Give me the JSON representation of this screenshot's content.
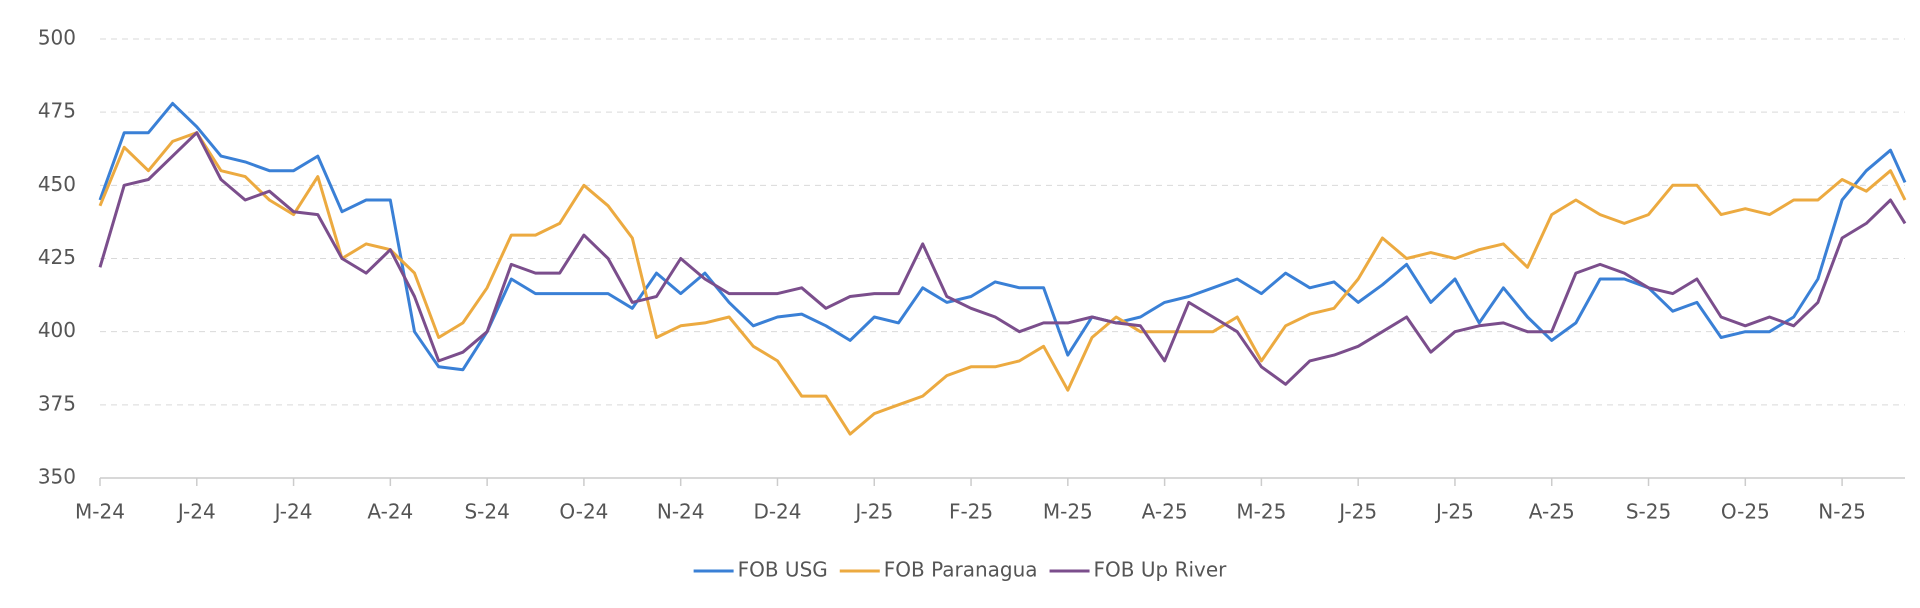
{
  "chart_data": {
    "type": "line",
    "x": [
      0,
      0.25,
      0.5,
      0.75,
      1,
      1.25,
      1.5,
      1.75,
      2,
      2.25,
      2.5,
      2.75,
      3,
      3.25,
      3.5,
      3.75,
      4,
      4.25,
      4.5,
      4.75,
      5,
      5.25,
      5.5,
      5.75,
      6,
      6.25,
      6.5,
      6.75,
      7,
      7.25,
      7.5,
      7.75,
      8,
      8.25,
      8.5,
      8.75,
      9,
      9.25,
      9.5,
      9.75,
      10,
      10.25,
      10.5,
      10.75,
      11,
      11.25,
      11.5,
      11.75,
      12,
      12.25,
      12.5,
      12.75,
      13,
      13.25,
      13.5,
      13.75,
      14,
      14.25,
      14.5,
      14.75,
      15,
      15.25,
      15.5,
      15.75,
      16,
      16.25,
      16.5,
      16.75,
      17,
      17.25,
      17.5,
      17.75,
      18,
      18.25,
      18.5,
      18.65
    ],
    "series": [
      {
        "name": "FOB USG",
        "color": "#3a80d6",
        "values": [
          445,
          468,
          468,
          478,
          470,
          460,
          458,
          455,
          455,
          460,
          441,
          445,
          445,
          400,
          388,
          387,
          400,
          418,
          413,
          413,
          413,
          413,
          408,
          420,
          413,
          420,
          410,
          402,
          405,
          406,
          402,
          397,
          405,
          403,
          415,
          410,
          412,
          417,
          415,
          415,
          392,
          405,
          403,
          405,
          410,
          412,
          415,
          418,
          413,
          420,
          415,
          417,
          410,
          416,
          423,
          410,
          418,
          403,
          415,
          405,
          397,
          403,
          418,
          418,
          415,
          407,
          410,
          398,
          400,
          400,
          405,
          418,
          445,
          455,
          462,
          451
        ]
      },
      {
        "name": "FOB Paranagua",
        "color": "#ecaa40",
        "values": [
          443,
          463,
          455,
          465,
          468,
          455,
          453,
          445,
          440,
          453,
          425,
          430,
          428,
          420,
          398,
          403,
          415,
          433,
          433,
          437,
          450,
          443,
          432,
          398,
          402,
          403,
          405,
          395,
          390,
          378,
          378,
          365,
          372,
          375,
          378,
          385,
          388,
          388,
          390,
          395,
          380,
          398,
          405,
          400,
          400,
          400,
          400,
          405,
          390,
          402,
          406,
          408,
          418,
          432,
          425,
          427,
          425,
          428,
          430,
          422,
          440,
          445,
          440,
          437,
          440,
          450,
          450,
          440,
          442,
          440,
          445,
          445,
          452,
          448,
          455,
          445
        ]
      },
      {
        "name": "FOB Up River",
        "color": "#7b4e8c",
        "values": [
          422,
          450,
          452,
          460,
          468,
          452,
          445,
          448,
          441,
          440,
          425,
          420,
          428,
          412,
          390,
          393,
          400,
          423,
          420,
          420,
          433,
          425,
          410,
          412,
          425,
          418,
          413,
          413,
          413,
          415,
          408,
          412,
          413,
          413,
          430,
          412,
          408,
          405,
          400,
          403,
          403,
          405,
          403,
          402,
          390,
          410,
          405,
          400,
          388,
          382,
          390,
          392,
          395,
          400,
          405,
          393,
          400,
          402,
          403,
          400,
          400,
          420,
          423,
          420,
          415,
          413,
          418,
          405,
          402,
          405,
          402,
          410,
          432,
          437,
          445,
          437
        ]
      }
    ],
    "xlim": [
      0,
      18.65
    ],
    "xticks": [
      {
        "value": 0,
        "label": "M-24"
      },
      {
        "value": 1,
        "label": "J-24"
      },
      {
        "value": 2,
        "label": "J-24"
      },
      {
        "value": 3,
        "label": "A-24"
      },
      {
        "value": 4,
        "label": "S-24"
      },
      {
        "value": 5,
        "label": "O-24"
      },
      {
        "value": 6,
        "label": "N-24"
      },
      {
        "value": 7,
        "label": "D-24"
      },
      {
        "value": 8,
        "label": "J-25"
      },
      {
        "value": 9,
        "label": "F-25"
      },
      {
        "value": 10,
        "label": "M-25"
      },
      {
        "value": 11,
        "label": "A-25"
      },
      {
        "value": 12,
        "label": "M-25"
      },
      {
        "value": 13,
        "label": "J-25"
      },
      {
        "value": 14,
        "label": "J-25"
      },
      {
        "value": 15,
        "label": "A-25"
      },
      {
        "value": 16,
        "label": "S-25"
      },
      {
        "value": 17,
        "label": "O-25"
      },
      {
        "value": 18,
        "label": "N-25"
      }
    ],
    "ylim": [
      350,
      500
    ],
    "yticks": [
      350,
      375,
      400,
      425,
      450,
      475,
      500
    ],
    "grid": true,
    "legend": "bottom"
  }
}
